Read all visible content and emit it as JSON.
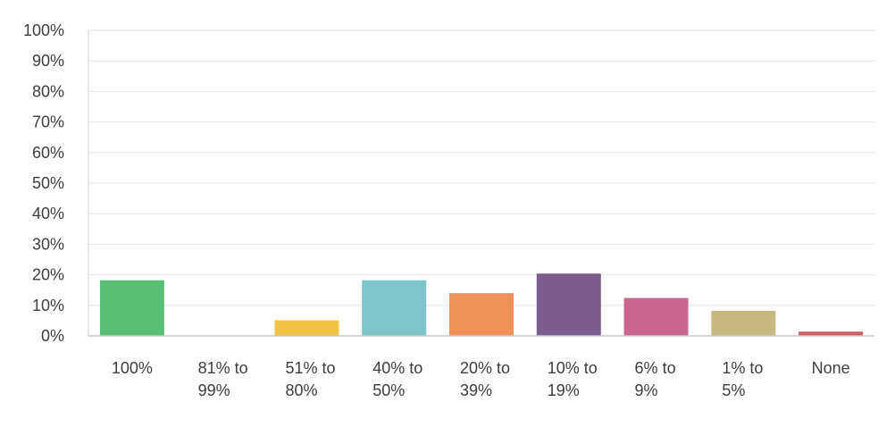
{
  "chart_data": {
    "type": "bar",
    "title": "",
    "xlabel": "",
    "ylabel": "",
    "categories": [
      [
        "100%"
      ],
      [
        "81% to",
        "99%"
      ],
      [
        "51% to",
        "80%"
      ],
      [
        "40% to",
        "50%"
      ],
      [
        "20% to",
        "39%"
      ],
      [
        "10% to",
        "19%"
      ],
      [
        "6% to",
        "9%"
      ],
      [
        "1% to",
        "5%"
      ],
      [
        "None"
      ]
    ],
    "values": [
      18.2,
      0,
      5.1,
      18.2,
      14.0,
      20.4,
      12.4,
      8.2,
      1.4
    ],
    "colors": [
      "#5bbf73",
      "#cccccc",
      "#f1c244",
      "#7fc4c8",
      "#f0915a",
      "#7b5d8f",
      "#c8668f",
      "#c6b981",
      "#cf5f64"
    ],
    "ylim": [
      0,
      100
    ],
    "yticks": [
      "0%",
      "10%",
      "20%",
      "30%",
      "40%",
      "50%",
      "60%",
      "70%",
      "80%",
      "90%",
      "100%"
    ],
    "grid": true,
    "legend": "none"
  }
}
